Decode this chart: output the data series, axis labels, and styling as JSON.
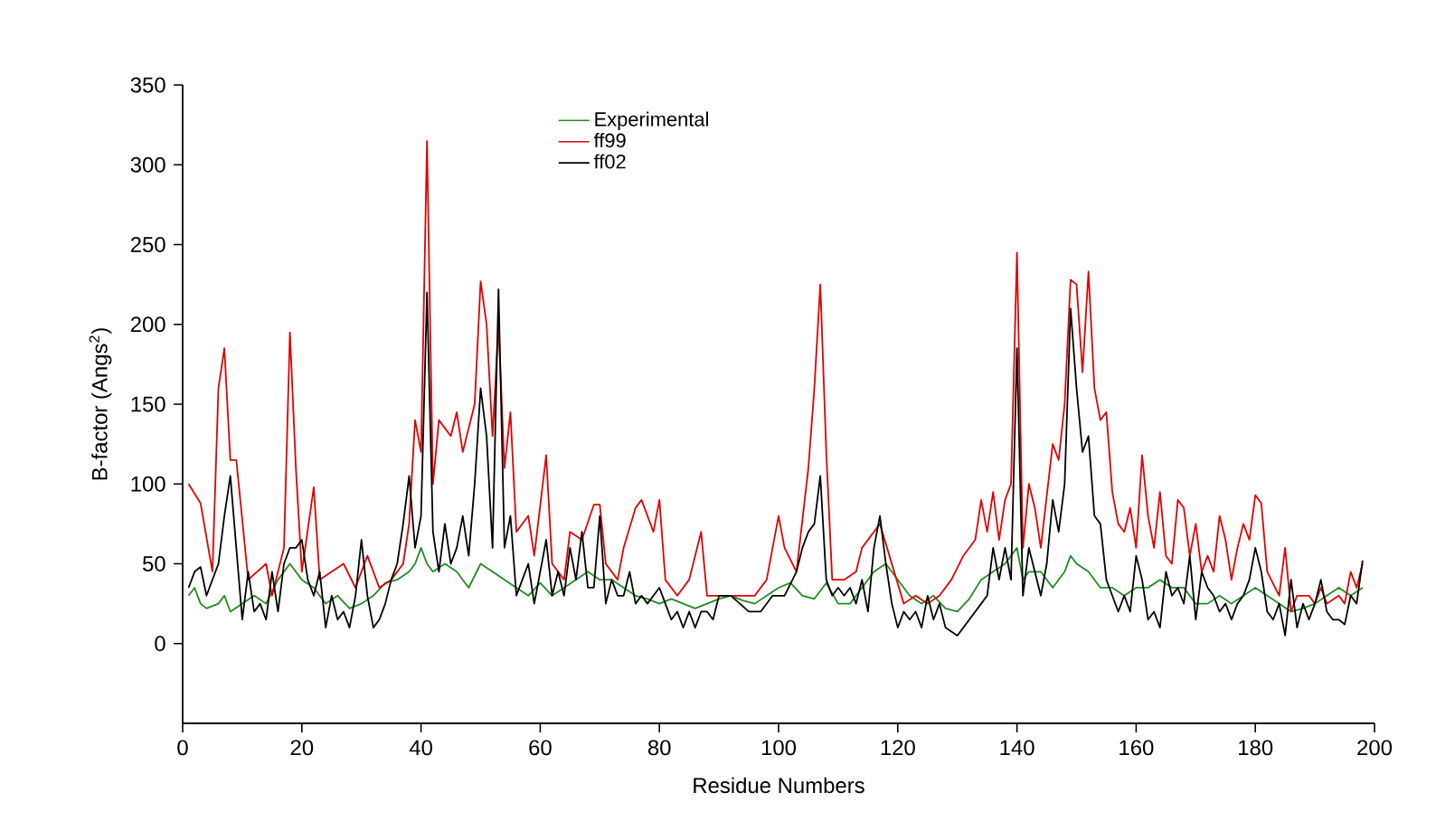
{
  "chart_data": {
    "type": "line",
    "xlabel": "Residue Numbers",
    "ylabel": "B-factor (Angs$^{2}$)",
    "xlim": [
      0,
      200
    ],
    "ylim": [
      -50,
      350
    ],
    "xticks": [
      0,
      20,
      40,
      60,
      80,
      100,
      120,
      140,
      160,
      180,
      200
    ],
    "yticks": [
      0,
      50,
      100,
      150,
      200,
      250,
      300,
      350
    ],
    "legend": "top",
    "grid": false,
    "marker": "none",
    "line_style": "solid",
    "series": [
      {
        "name": "Experimental",
        "color": "#228b22",
        "x": [
          1,
          2,
          3,
          4,
          6,
          7,
          8,
          10,
          12,
          14,
          16,
          18,
          20,
          22,
          24,
          26,
          28,
          30,
          32,
          34,
          36,
          38,
          39,
          40,
          41,
          42,
          44,
          46,
          48,
          50,
          52,
          54,
          56,
          58,
          60,
          62,
          64,
          66,
          68,
          70,
          72,
          74,
          76,
          78,
          80,
          82,
          84,
          86,
          88,
          90,
          92,
          94,
          96,
          98,
          100,
          102,
          104,
          106,
          108,
          110,
          112,
          114,
          116,
          118,
          120,
          122,
          124,
          126,
          128,
          130,
          132,
          134,
          136,
          138,
          140,
          141,
          142,
          144,
          146,
          148,
          149,
          150,
          152,
          154,
          156,
          158,
          160,
          162,
          164,
          166,
          168,
          170,
          172,
          174,
          176,
          178,
          180,
          182,
          184,
          186,
          188,
          190,
          192,
          194,
          196,
          198
        ],
        "values": [
          30,
          35,
          25,
          22,
          25,
          30,
          20,
          25,
          30,
          25,
          40,
          50,
          40,
          35,
          25,
          30,
          22,
          25,
          30,
          38,
          40,
          45,
          50,
          60,
          50,
          45,
          50,
          45,
          35,
          50,
          45,
          40,
          35,
          30,
          38,
          30,
          35,
          40,
          45,
          40,
          40,
          35,
          30,
          28,
          25,
          28,
          25,
          22,
          25,
          28,
          30,
          27,
          25,
          30,
          35,
          38,
          30,
          28,
          38,
          25,
          25,
          35,
          45,
          50,
          40,
          30,
          25,
          30,
          22,
          20,
          28,
          40,
          45,
          50,
          60,
          40,
          45,
          45,
          35,
          45,
          55,
          50,
          45,
          35,
          35,
          30,
          35,
          35,
          40,
          35,
          35,
          25,
          25,
          30,
          25,
          30,
          35,
          30,
          25,
          20,
          22,
          25,
          30,
          35,
          30,
          35
        ]
      },
      {
        "name": "ff99",
        "color": "#e00000",
        "x": [
          1,
          3,
          5,
          6,
          7,
          8,
          9,
          11,
          14,
          15,
          17,
          18,
          19,
          20,
          22,
          23,
          25,
          27,
          29,
          31,
          33,
          35,
          37,
          38,
          39,
          40,
          41,
          42,
          43,
          45,
          46,
          47,
          49,
          50,
          51,
          52,
          53,
          54,
          55,
          56,
          58,
          59,
          61,
          62,
          64,
          65,
          67,
          69,
          70,
          71,
          73,
          74,
          76,
          77,
          79,
          80,
          81,
          83,
          85,
          87,
          88,
          90,
          93,
          96,
          98,
          100,
          101,
          103,
          105,
          106,
          107,
          108,
          109,
          111,
          113,
          114,
          116,
          117,
          119,
          121,
          123,
          125,
          127,
          129,
          131,
          133,
          134,
          135,
          136,
          137,
          138,
          139,
          140,
          141,
          142,
          143,
          144,
          146,
          147,
          148,
          149,
          150,
          151,
          152,
          153,
          154,
          155,
          156,
          157,
          158,
          159,
          160,
          161,
          162,
          163,
          164,
          165,
          166,
          167,
          168,
          169,
          170,
          171,
          172,
          173,
          174,
          175,
          176,
          177,
          178,
          179,
          180,
          181,
          182,
          184,
          185,
          186,
          187,
          189,
          190,
          191,
          192,
          194,
          195,
          196,
          197,
          198
        ],
        "values": [
          100,
          88,
          45,
          160,
          185,
          115,
          115,
          40,
          50,
          30,
          60,
          195,
          110,
          45,
          98,
          40,
          45,
          50,
          35,
          55,
          35,
          40,
          50,
          75,
          140,
          120,
          315,
          100,
          140,
          130,
          145,
          120,
          150,
          227,
          200,
          130,
          200,
          110,
          145,
          70,
          80,
          55,
          118,
          50,
          40,
          70,
          65,
          87,
          87,
          50,
          40,
          60,
          85,
          90,
          70,
          90,
          40,
          30,
          40,
          70,
          30,
          30,
          30,
          30,
          40,
          80,
          60,
          45,
          110,
          160,
          225,
          120,
          40,
          40,
          45,
          60,
          70,
          75,
          50,
          25,
          30,
          25,
          30,
          40,
          55,
          65,
          90,
          70,
          95,
          65,
          90,
          100,
          245,
          60,
          100,
          85,
          60,
          125,
          115,
          150,
          228,
          225,
          170,
          233,
          160,
          140,
          145,
          95,
          75,
          70,
          85,
          60,
          118,
          80,
          60,
          95,
          55,
          50,
          90,
          85,
          55,
          75,
          45,
          55,
          45,
          80,
          65,
          40,
          60,
          75,
          65,
          93,
          88,
          45,
          30,
          60,
          20,
          30,
          30,
          25,
          35,
          25,
          30,
          25,
          45,
          35,
          50
        ]
      },
      {
        "name": "ff02",
        "color": "#000000",
        "x": [
          1,
          2,
          3,
          4,
          6,
          7,
          8,
          9,
          10,
          11,
          12,
          13,
          14,
          15,
          16,
          17,
          18,
          19,
          20,
          21,
          22,
          23,
          24,
          25,
          26,
          27,
          28,
          29,
          30,
          31,
          32,
          33,
          34,
          35,
          36,
          37,
          38,
          39,
          40,
          41,
          42,
          43,
          44,
          45,
          46,
          47,
          48,
          49,
          50,
          51,
          52,
          53,
          54,
          55,
          56,
          57,
          58,
          59,
          60,
          61,
          62,
          63,
          64,
          65,
          66,
          67,
          68,
          69,
          70,
          71,
          72,
          73,
          74,
          75,
          76,
          77,
          78,
          79,
          80,
          81,
          82,
          83,
          84,
          85,
          86,
          87,
          88,
          89,
          90,
          92,
          95,
          97,
          99,
          101,
          103,
          104,
          105,
          106,
          107,
          108,
          109,
          110,
          111,
          112,
          113,
          114,
          115,
          116,
          117,
          118,
          119,
          120,
          121,
          122,
          123,
          124,
          125,
          126,
          127,
          128,
          130,
          132,
          134,
          135,
          136,
          137,
          138,
          139,
          140,
          141,
          142,
          143,
          144,
          145,
          146,
          147,
          148,
          149,
          150,
          151,
          152,
          153,
          154,
          155,
          156,
          157,
          158,
          159,
          160,
          161,
          162,
          163,
          164,
          165,
          166,
          167,
          168,
          169,
          170,
          171,
          172,
          173,
          174,
          175,
          176,
          177,
          178,
          179,
          180,
          181,
          182,
          183,
          184,
          185,
          186,
          187,
          188,
          189,
          190,
          191,
          192,
          193,
          194,
          195,
          196,
          197,
          198
        ],
        "values": [
          35,
          45,
          48,
          30,
          50,
          80,
          105,
          60,
          15,
          45,
          20,
          25,
          15,
          45,
          20,
          50,
          60,
          60,
          65,
          40,
          30,
          45,
          10,
          30,
          15,
          20,
          10,
          30,
          65,
          30,
          10,
          15,
          25,
          40,
          50,
          75,
          105,
          60,
          80,
          220,
          70,
          45,
          75,
          50,
          60,
          80,
          55,
          100,
          160,
          130,
          60,
          222,
          60,
          80,
          30,
          40,
          50,
          25,
          45,
          65,
          30,
          45,
          30,
          60,
          40,
          70,
          35,
          35,
          80,
          25,
          40,
          30,
          30,
          45,
          25,
          30,
          25,
          30,
          35,
          25,
          15,
          20,
          10,
          20,
          10,
          20,
          20,
          15,
          30,
          30,
          20,
          20,
          30,
          30,
          45,
          60,
          70,
          75,
          105,
          40,
          30,
          35,
          30,
          35,
          25,
          40,
          20,
          60,
          80,
          50,
          25,
          10,
          20,
          15,
          20,
          10,
          30,
          15,
          25,
          10,
          5,
          15,
          25,
          30,
          60,
          40,
          60,
          40,
          185,
          30,
          60,
          45,
          30,
          50,
          90,
          70,
          100,
          210,
          160,
          120,
          130,
          80,
          75,
          40,
          30,
          20,
          30,
          20,
          55,
          40,
          15,
          20,
          10,
          45,
          30,
          35,
          25,
          55,
          15,
          45,
          35,
          30,
          20,
          25,
          15,
          25,
          30,
          40,
          60,
          45,
          20,
          15,
          25,
          5,
          40,
          10,
          25,
          15,
          25,
          40,
          20,
          15,
          15,
          12,
          30,
          25,
          52
        ]
      }
    ]
  }
}
